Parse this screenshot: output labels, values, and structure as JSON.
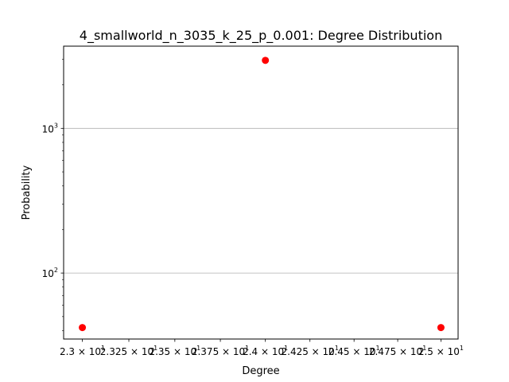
{
  "chart_data": {
    "type": "scatter",
    "title": "4_smallworld_n_3035_k_25_p_0.001: Degree Distribution",
    "xlabel": "Degree",
    "ylabel": "Probability",
    "x_scale": "log",
    "y_scale": "log",
    "xlim": [
      22.9,
      25.1
    ],
    "ylim": [
      35,
      3700
    ],
    "grid": "y-major",
    "marker_color": "#ff0000",
    "x_ticks": [
      {
        "value": 23.0,
        "mantissa": "2.3",
        "base": "10",
        "exp": "1"
      },
      {
        "value": 23.25,
        "mantissa": "2.325",
        "base": "10",
        "exp": "1"
      },
      {
        "value": 23.5,
        "mantissa": "2.35",
        "base": "10",
        "exp": "1"
      },
      {
        "value": 23.75,
        "mantissa": "2.375",
        "base": "10",
        "exp": "1"
      },
      {
        "value": 24.0,
        "mantissa": "2.4",
        "base": "10",
        "exp": "1"
      },
      {
        "value": 24.25,
        "mantissa": "2.425",
        "base": "10",
        "exp": "1"
      },
      {
        "value": 24.5,
        "mantissa": "2.45",
        "base": "10",
        "exp": "1"
      },
      {
        "value": 24.75,
        "mantissa": "2.475",
        "base": "10",
        "exp": "1"
      },
      {
        "value": 25.0,
        "mantissa": "2.5",
        "base": "10",
        "exp": "1"
      }
    ],
    "y_ticks": [
      {
        "value": 100,
        "base": "10",
        "exp": "2"
      },
      {
        "value": 1000,
        "base": "10",
        "exp": "3"
      }
    ],
    "points": [
      {
        "x": 23,
        "y": 42
      },
      {
        "x": 24,
        "y": 2951
      },
      {
        "x": 25,
        "y": 42
      }
    ]
  }
}
